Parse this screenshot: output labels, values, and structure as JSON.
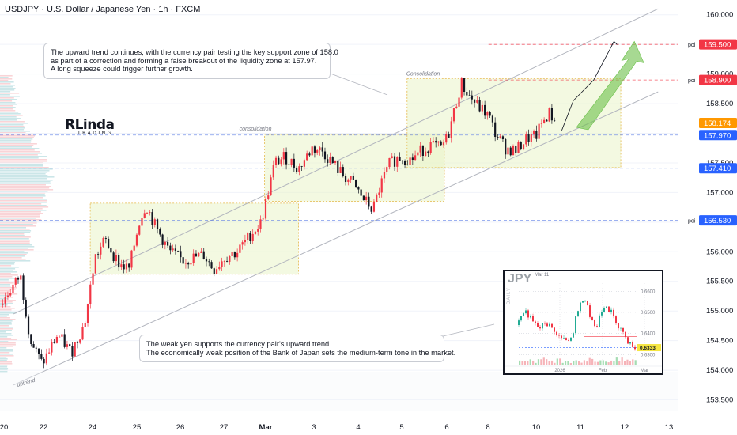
{
  "header": {
    "symbol_line": "USDJPY · U.S. Dollar / Japanese Yen · 1h · FXCM"
  },
  "colors": {
    "bullish": "#f23645",
    "bearish": "#131722",
    "channel": "#b2b5be",
    "zone_fill": "#eaf4c8",
    "zone_border": "#e5b84a",
    "poi_line": "#f23645",
    "price_tag": "#ff9800",
    "level_tag": "#2962ff",
    "arrow": "#6cc04a"
  },
  "annotations": {
    "top_note": [
      "The upward trend continues, with the currency pair testing the key support zone of 158.0",
      "as part of a correction and forming a false breakout of the liquidity zone at 157.97.",
      "A long squeeze could trigger further growth."
    ],
    "bottom_note": [
      "The weak yen supports the currency pair's upward trend.",
      "The economically weak position of the Bank of Japan sets the medium-term tone in the market."
    ],
    "zone_labels": [
      "consolidation",
      "Consolidation"
    ],
    "uptrend_label": "uptrend"
  },
  "logo": {
    "main": "RLinda",
    "sub": "TRADING"
  },
  "inset": {
    "title": "JPY",
    "date": "Mar 11",
    "timeframe": "DAILY",
    "y_ticks": [
      "0.6600",
      "0.6500",
      "0.6400",
      "0.6300"
    ],
    "x_ticks": [
      "2026",
      "Feb",
      "Mar"
    ],
    "last_price": "0.6333"
  },
  "chart_data": {
    "type": "candlestick",
    "title": "USDJPY · U.S. Dollar / Japanese Yen · 1h · FXCM",
    "x_tick_labels": [
      "20",
      "22",
      "24",
      "25",
      "26",
      "27",
      "Mar",
      "3",
      "4",
      "5",
      "6",
      "8",
      "10",
      "11",
      "12",
      "13"
    ],
    "y_ticks": [
      153.5,
      154.0,
      154.5,
      155.0,
      155.5,
      156.0,
      156.5,
      157.0,
      157.5,
      158.0,
      158.5,
      159.0,
      159.5,
      160.0
    ],
    "y_tick_labels": [
      "153.500",
      "154.000",
      "154.500",
      "155.000",
      "155.500",
      "156.000",
      "",
      "157.000",
      "157.500",
      "",
      "158.500",
      "159.000",
      "",
      "160.000"
    ],
    "ylim": [
      153.2,
      160.25
    ],
    "current_price": {
      "value": 158.174,
      "label": "158.174"
    },
    "levels": [
      {
        "value": 159.5,
        "label": "159.500",
        "tag": "poi",
        "style": "poi"
      },
      {
        "value": 158.9,
        "label": "158.900",
        "tag": "poi",
        "style": "poi"
      },
      {
        "value": 157.97,
        "label": "157.970",
        "tag": "",
        "style": "level"
      },
      {
        "value": 157.41,
        "label": "157.410",
        "tag": "",
        "style": "level"
      },
      {
        "value": 156.53,
        "label": "156.530",
        "tag": "poi",
        "style": "level"
      }
    ],
    "consolidation_zones": [
      {
        "label": "",
        "x_start": 0.133,
        "x_end": 0.44,
        "y_low": 155.62,
        "y_high": 156.82
      },
      {
        "label": "consolidation",
        "x_start": 0.39,
        "x_end": 0.655,
        "y_low": 156.85,
        "y_high": 157.98
      },
      {
        "label": "Consolidation",
        "x_start": 0.6,
        "x_end": 0.915,
        "y_low": 157.42,
        "y_high": 158.92
      }
    ],
    "price_path": [
      [
        0.0,
        155.1
      ],
      [
        0.03,
        155.6
      ],
      [
        0.045,
        154.5
      ],
      [
        0.062,
        154.1
      ],
      [
        0.085,
        154.6
      ],
      [
        0.105,
        154.3
      ],
      [
        0.125,
        154.8
      ],
      [
        0.14,
        155.9
      ],
      [
        0.155,
        156.2
      ],
      [
        0.175,
        155.8
      ],
      [
        0.19,
        155.7
      ],
      [
        0.205,
        156.5
      ],
      [
        0.215,
        156.8
      ],
      [
        0.23,
        156.4
      ],
      [
        0.25,
        156.0
      ],
      [
        0.27,
        155.85
      ],
      [
        0.3,
        155.95
      ],
      [
        0.315,
        155.7
      ],
      [
        0.33,
        155.9
      ],
      [
        0.35,
        156.0
      ],
      [
        0.37,
        156.3
      ],
      [
        0.385,
        156.5
      ],
      [
        0.395,
        157.0
      ],
      [
        0.405,
        157.5
      ],
      [
        0.42,
        157.6
      ],
      [
        0.44,
        157.4
      ],
      [
        0.46,
        157.75
      ],
      [
        0.475,
        157.7
      ],
      [
        0.49,
        157.5
      ],
      [
        0.505,
        157.3
      ],
      [
        0.52,
        157.15
      ],
      [
        0.535,
        156.9
      ],
      [
        0.55,
        156.7
      ],
      [
        0.56,
        157.1
      ],
      [
        0.575,
        157.5
      ],
      [
        0.59,
        157.6
      ],
      [
        0.605,
        157.55
      ],
      [
        0.62,
        157.7
      ],
      [
        0.635,
        157.8
      ],
      [
        0.65,
        157.75
      ],
      [
        0.66,
        157.95
      ],
      [
        0.67,
        158.4
      ],
      [
        0.68,
        158.85
      ],
      [
        0.69,
        158.65
      ],
      [
        0.705,
        158.45
      ],
      [
        0.72,
        158.3
      ],
      [
        0.73,
        158.0
      ],
      [
        0.745,
        157.75
      ],
      [
        0.76,
        157.7
      ],
      [
        0.775,
        157.9
      ],
      [
        0.79,
        157.95
      ],
      [
        0.8,
        158.2
      ],
      [
        0.81,
        158.35
      ],
      [
        0.82,
        158.15
      ]
    ],
    "projection": [
      [
        0.828,
        158.05
      ],
      [
        0.845,
        158.55
      ],
      [
        0.875,
        158.9
      ],
      [
        0.905,
        159.55
      ]
    ]
  }
}
